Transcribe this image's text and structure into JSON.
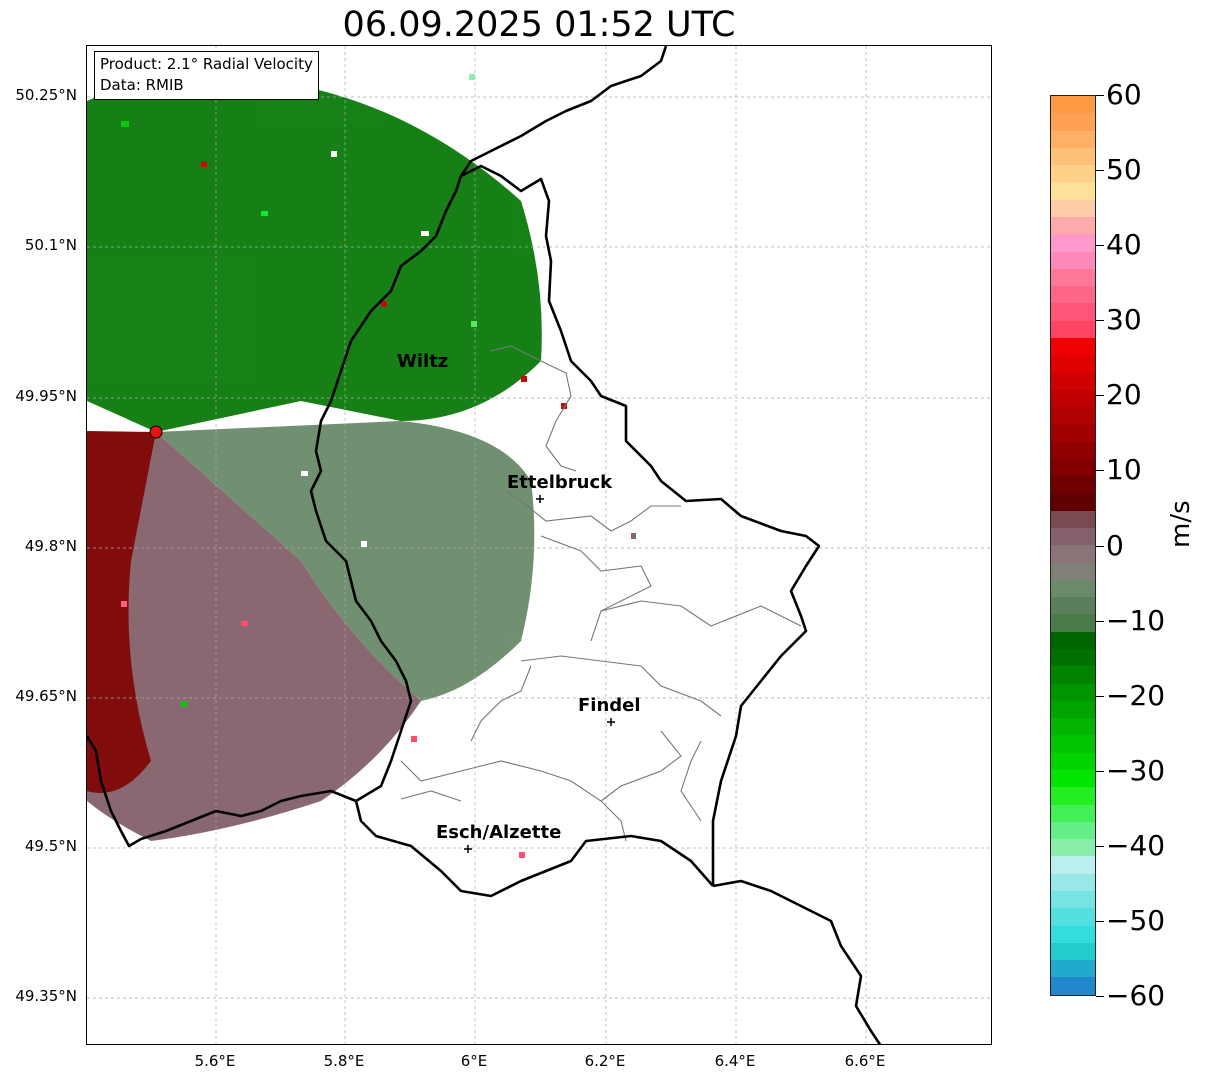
{
  "title": "06.09.2025 01:52 UTC",
  "info": {
    "product": "Product: 2.1° Radial Velocity",
    "data": "Data: RMIB"
  },
  "axes": {
    "y_labels": [
      "50.25°N",
      "50.1°N",
      "49.95°N",
      "49.8°N",
      "49.65°N",
      "49.5°N",
      "49.35°N"
    ],
    "x_labels": [
      "5.6°E",
      "5.8°E",
      "6°E",
      "6.2°E",
      "6.4°E",
      "6.6°E"
    ]
  },
  "cities": [
    {
      "name": "Wiltz",
      "lon": 5.93,
      "lat": 49.966
    },
    {
      "name": "Ettelbruck",
      "lon": 6.1,
      "lat": 49.848
    },
    {
      "name": "Findel",
      "lon": 6.21,
      "lat": 49.627
    },
    {
      "name": "Esch/Alzette",
      "lon": 5.99,
      "lat": 49.498
    }
  ],
  "radar_site": {
    "lon": 5.505,
    "lat": 49.914
  },
  "colorbar": {
    "unit": "m/s",
    "min": -60,
    "max": 60,
    "tick_labels": [
      "60",
      "50",
      "40",
      "30",
      "20",
      "10",
      "0",
      "−10",
      "−20",
      "−30",
      "−40",
      "−50",
      "−60"
    ],
    "colors": [
      "#2288cc",
      "#22aacc",
      "#22cccc",
      "#33dddd",
      "#55e0e0",
      "#77e4e4",
      "#99e8e8",
      "#bbeeee",
      "#88eeaa",
      "#66ee88",
      "#44ee55",
      "#22ee22",
      "#00e600",
      "#00d400",
      "#00c400",
      "#00b400",
      "#00a400",
      "#009400",
      "#008400",
      "#007000",
      "#006400",
      "#4a7a4a",
      "#5a7f5a",
      "#6a8a6a",
      "#808078",
      "#8a7478",
      "#84606a",
      "#7a4a52",
      "#600000",
      "#700000",
      "#800000",
      "#900000",
      "#a00000",
      "#b00000",
      "#c00000",
      "#d00000",
      "#e00000",
      "#f00000",
      "#ff4466",
      "#ff5577",
      "#ff6688",
      "#ff7799",
      "#ff88bb",
      "#ff99cc",
      "#ffaaaa",
      "#ffccaa",
      "#ffe099",
      "#ffd088",
      "#ffc077",
      "#ffb066",
      "#ffa055",
      "#ff9944"
    ],
    "colormap_note": ""
  },
  "region_colors": {
    "outbound": "#007000",
    "neutral_green": "#6a8a6a",
    "neutral_pink": "#84606a",
    "inbound": "#800000"
  }
}
